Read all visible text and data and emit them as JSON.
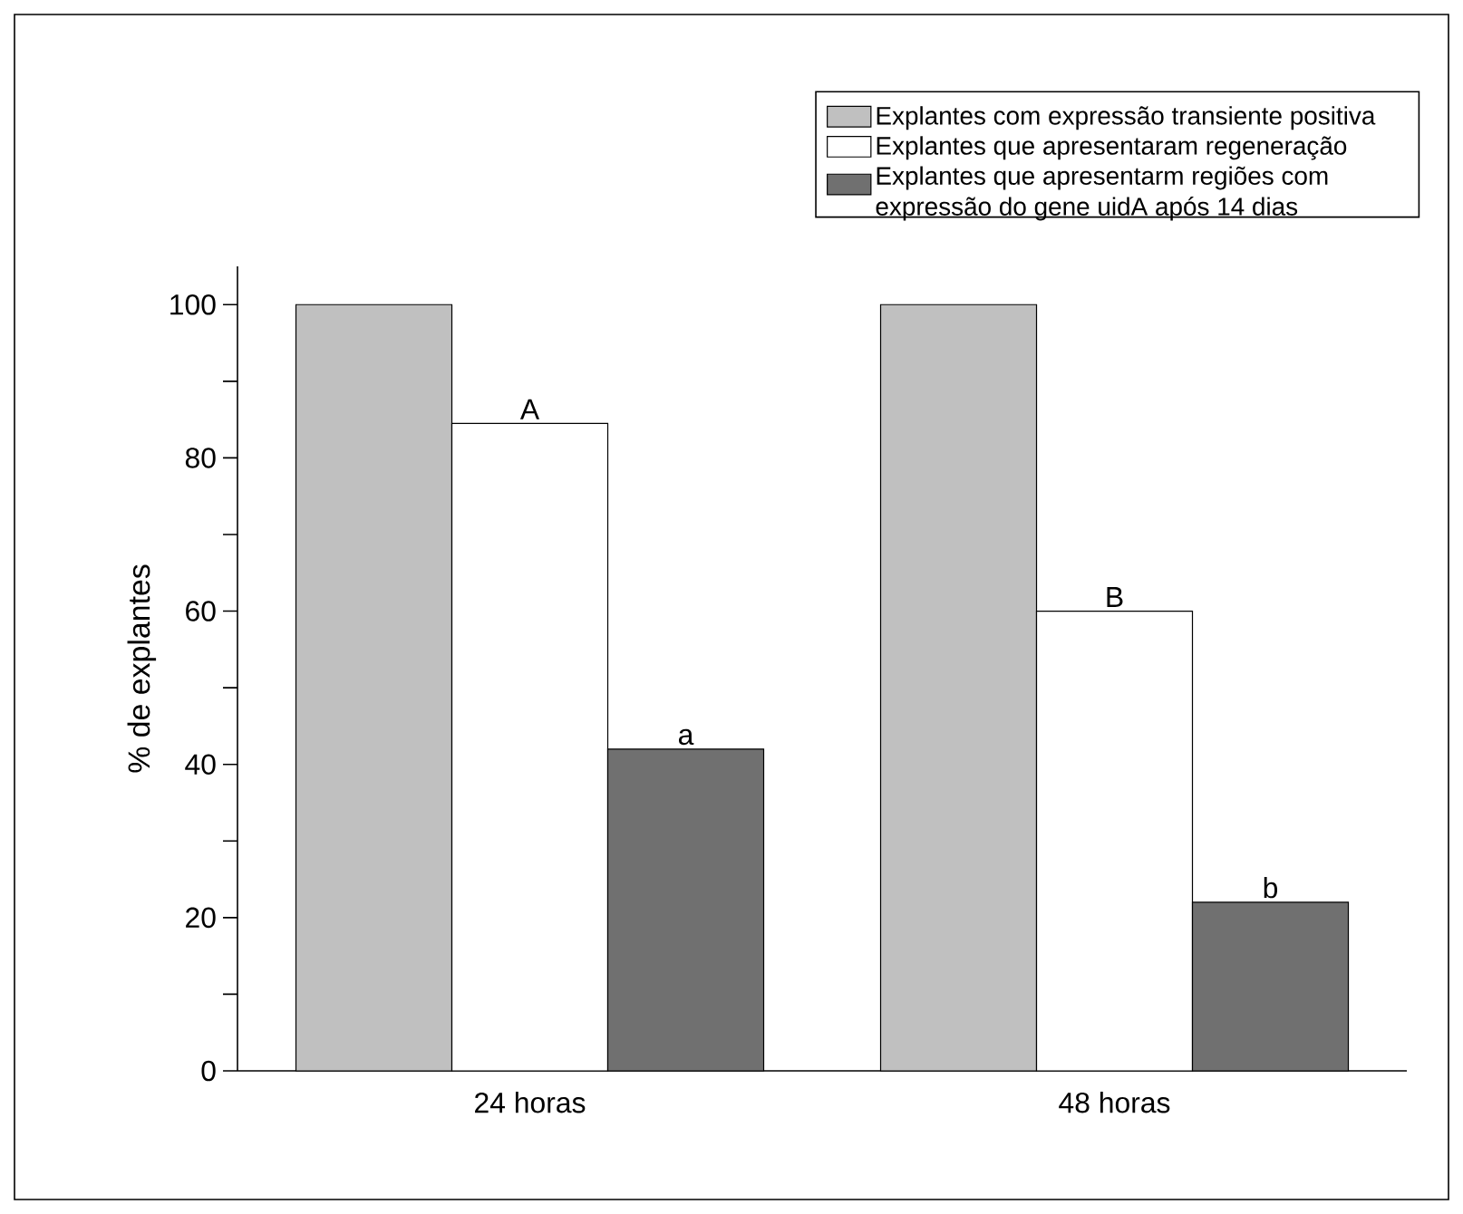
{
  "chart_data": {
    "type": "bar",
    "ylabel": "% de explantes",
    "categories": [
      "24 horas",
      "48 horas"
    ],
    "series": [
      {
        "name": "Explantes com expressão transiente positiva",
        "color": "#c0c0c0",
        "values": [
          100,
          100
        ]
      },
      {
        "name": "Explantes que apresentaram regeneração",
        "color": "#ffffff",
        "values": [
          84.5,
          60
        ],
        "value_labels": [
          "A",
          "B"
        ]
      },
      {
        "name": "Explantes que apresentarm regiões com expressão do gene uidA após 14 dias",
        "color": "#707070",
        "values": [
          42,
          22
        ],
        "value_labels": [
          "a",
          "b"
        ]
      }
    ],
    "ylim": [
      0,
      105
    ],
    "yticks": [
      0,
      {
        "value": 10,
        "label": null
      },
      20,
      {
        "value": 30,
        "label": null
      },
      40,
      {
        "value": 50,
        "label": null
      },
      60,
      {
        "value": 70,
        "label": null
      },
      80,
      {
        "value": 90,
        "label": null
      },
      100
    ],
    "grid": false,
    "legend": "top right"
  }
}
